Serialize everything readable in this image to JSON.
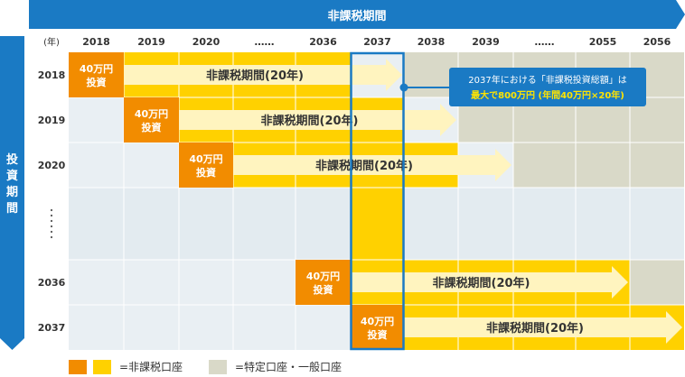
{
  "header": {
    "label": "非課税期間"
  },
  "side": {
    "label": "投資期間"
  },
  "columns": {
    "unit": "(年)",
    "years": [
      "2018",
      "2019",
      "2020",
      "……",
      "2036",
      "2037",
      "2038",
      "2039",
      "……",
      "2055",
      "2056"
    ]
  },
  "rows": [
    "2018",
    "2019",
    "2020",
    "……",
    "2036",
    "2037"
  ],
  "invest_label": "40万円\n投資",
  "arrow_label": "非課税期間(20年)",
  "callout": {
    "line1": "2037年における「非課税投資総額」は",
    "line2": "最大で800万円 (年間40万円×20年)"
  },
  "legend": {
    "taxfree": "=非課税口座",
    "general": "=特定口座・一般口座"
  },
  "colors": {
    "blue": "#1a7ac4",
    "orange": "#f28c00",
    "yellow": "#ffd100",
    "paleyellow": "#fff4bf",
    "gray": "#d9d9c8",
    "lightgray": "#e9eff3"
  }
}
